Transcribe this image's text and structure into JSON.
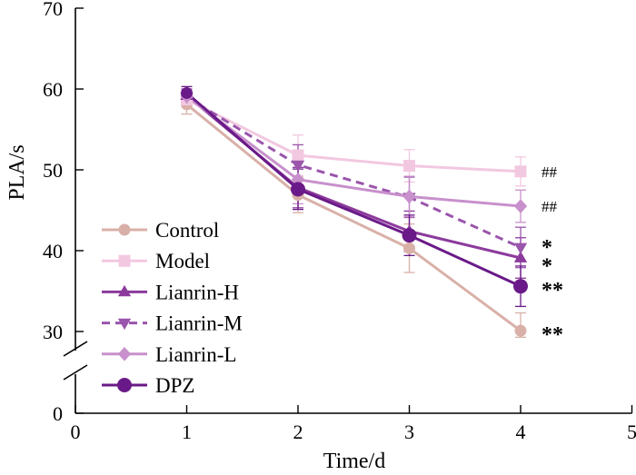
{
  "chart_data": {
    "type": "line",
    "title": "",
    "xlabel": "Time/d",
    "ylabel": "PLA/s",
    "xlim": [
      0,
      5
    ],
    "ylim": [
      0,
      70
    ],
    "y_axis_break": [
      0,
      30
    ],
    "x_ticks": [
      0,
      1,
      2,
      3,
      4,
      5
    ],
    "x_tick_labels": [
      "0",
      "1",
      "2",
      "3",
      "4",
      "5"
    ],
    "y_ticks": [
      0,
      30,
      40,
      50,
      60,
      70
    ],
    "y_tick_labels": [
      "0",
      "30",
      "40",
      "50",
      "60",
      "70"
    ],
    "grid": false,
    "legend_position": "lower-left",
    "x": [
      1,
      2,
      3,
      4
    ],
    "series": [
      {
        "name": "Control",
        "values": [
          58.1,
          46.9,
          40.3,
          30.1
        ],
        "errors": [
          1.2,
          2.2,
          3.0,
          2.2
        ],
        "color": "#d9b0a8",
        "marker": "circle",
        "dashed": false
      },
      {
        "name": "Model",
        "values": [
          58.7,
          51.8,
          50.5,
          49.8
        ],
        "errors": [
          0.8,
          2.5,
          2.0,
          1.8
        ],
        "color": "#f2c8e0",
        "marker": "square",
        "dashed": false
      },
      {
        "name": "Lianrin-H",
        "values": [
          59.2,
          47.8,
          42.4,
          39.1
        ],
        "errors": [
          0.8,
          2.5,
          2.5,
          2.5
        ],
        "color": "#8c3a9c",
        "marker": "triangle-up",
        "dashed": false
      },
      {
        "name": "Lianrin-M",
        "values": [
          59.0,
          50.6,
          46.6,
          40.4
        ],
        "errors": [
          0.8,
          2.5,
          2.5,
          2.5
        ],
        "color": "#9a55ac",
        "marker": "triangle-down",
        "dashed": true
      },
      {
        "name": "Lianrin-L",
        "values": [
          59.1,
          48.8,
          46.7,
          45.5
        ],
        "errors": [
          0.8,
          3.0,
          2.5,
          2.0
        ],
        "color": "#c890cc",
        "marker": "diamond",
        "dashed": false
      },
      {
        "name": "DPZ",
        "values": [
          59.5,
          47.6,
          41.9,
          35.6
        ],
        "errors": [
          0.8,
          2.5,
          2.5,
          2.5
        ],
        "color": "#6a1a88",
        "marker": "circle",
        "dashed": false
      }
    ],
    "annotations": [
      {
        "text": "##",
        "x": 4,
        "y": 49.8,
        "style": "hash"
      },
      {
        "text": "##",
        "x": 4,
        "y": 45.5,
        "style": "hash"
      },
      {
        "text": "*",
        "x": 4,
        "y": 40.9,
        "style": "star"
      },
      {
        "text": "*",
        "x": 4,
        "y": 38.6,
        "style": "star"
      },
      {
        "text": "**",
        "x": 4,
        "y": 35.6,
        "style": "star"
      },
      {
        "text": "**",
        "x": 4,
        "y": 30.1,
        "style": "star"
      }
    ]
  }
}
